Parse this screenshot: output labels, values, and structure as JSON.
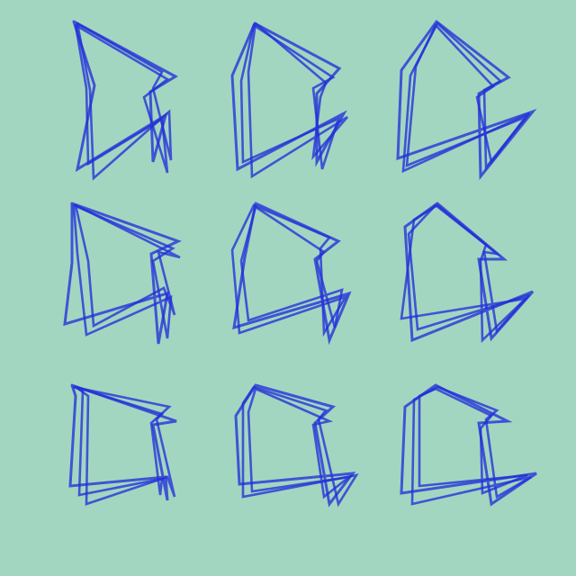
{
  "background_color": "#a3d6c1",
  "stroke_color": "#2330d8",
  "grid": {
    "rows": 3,
    "columns": 3
  },
  "glyph_count": 9,
  "strokes_per_glyph": 3
}
